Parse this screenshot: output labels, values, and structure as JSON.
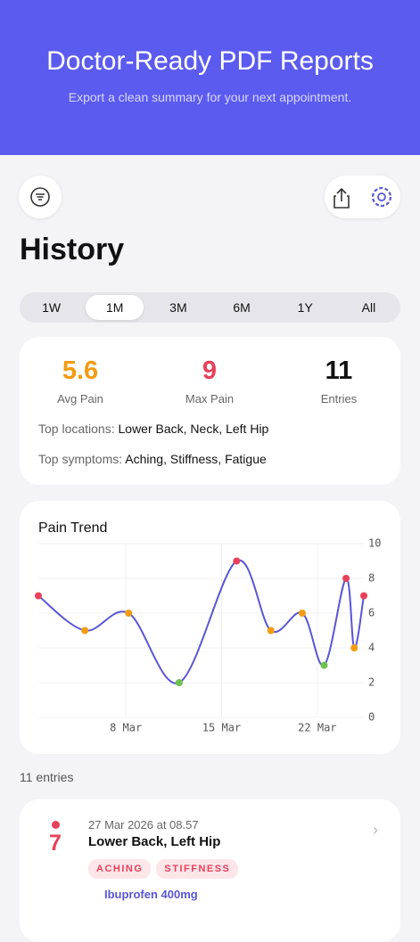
{
  "header": {
    "title": "Doctor-Ready PDF Reports",
    "subtitle": "Export a clean summary for your next appointment."
  },
  "screen_title": "History",
  "ranges": {
    "options": [
      "1W",
      "1M",
      "3M",
      "6M",
      "1Y",
      "All"
    ],
    "selected": 1
  },
  "stats": [
    {
      "value": 5.6,
      "label": "Avg Pain",
      "color": "#f39c12"
    },
    {
      "value": 9,
      "label": "Max Pain",
      "color": "#e8415a"
    },
    {
      "value": 11,
      "label": "Entries",
      "color": "#111111"
    }
  ],
  "top_locations": {
    "label": "Top locations:",
    "value": "Lower Back, Neck, Left Hip"
  },
  "top_symptoms": {
    "label": "Top symptoms:",
    "value": "Aching, Stiffness, Fatigue"
  },
  "chart_data": {
    "type": "line",
    "title": "Pain Trend",
    "x": [
      1.6,
      5,
      8.2,
      11.9,
      16.1,
      18.6,
      20.9,
      22.5,
      24.1,
      24.7,
      25.4
    ],
    "series": [
      {
        "color": "#5856d6",
        "values": [
          7,
          5,
          6,
          2,
          9,
          5,
          6,
          3,
          8,
          4,
          7
        ]
      }
    ],
    "point_colors": [
      "#e8415a",
      "#f39c12",
      "#f39c12",
      "#6cc24a",
      "#e8415a",
      "#f39c12",
      "#f39c12",
      "#6cc24a",
      "#e8415a",
      "#f39c12",
      "#e8415a"
    ],
    "xlim": [
      1.6,
      25.4
    ],
    "xticks": [
      {
        "value": 8,
        "label": "8 Mar"
      },
      {
        "value": 15,
        "label": "15 Mar"
      },
      {
        "value": 22,
        "label": "22 Mar"
      }
    ],
    "ylim": [
      0,
      10
    ],
    "yticks": [
      0,
      2,
      4,
      6,
      8,
      10
    ],
    "grid": true
  },
  "entries_count": "11 entries",
  "entries": [
    {
      "date": "27 Mar 2026 at 08.57",
      "pain": 7,
      "title": "Lower Back, Left Hip",
      "tags": [
        "ACHING",
        "STIFFNESS"
      ],
      "medication": "Ibuprofen 400mg"
    }
  ]
}
